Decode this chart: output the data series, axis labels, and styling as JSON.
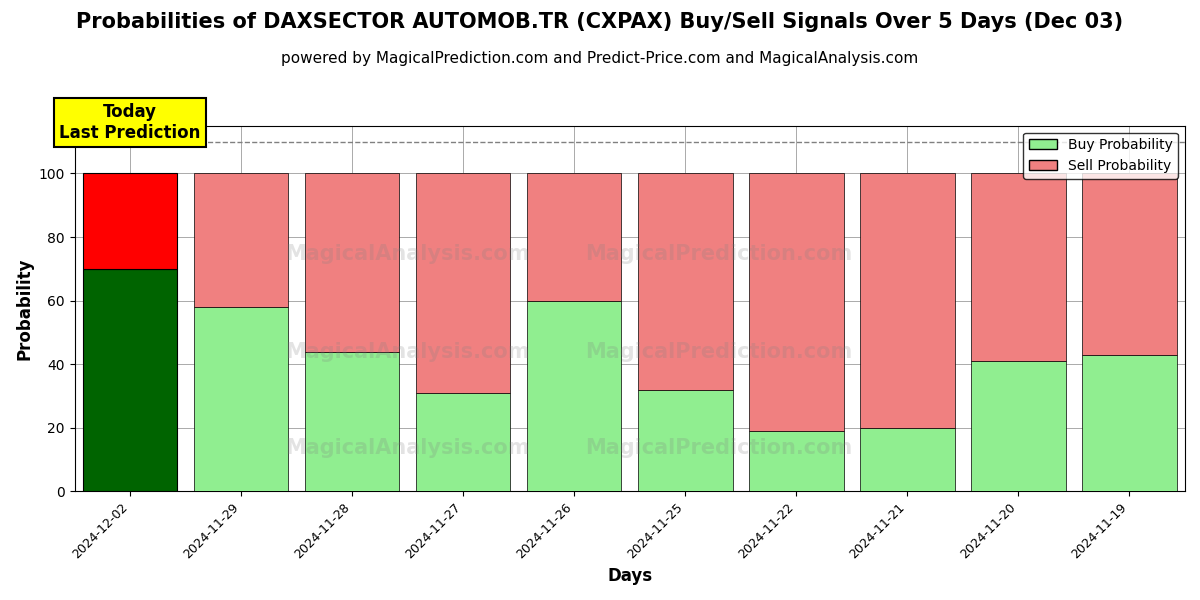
{
  "title": "Probabilities of DAXSECTOR AUTOMOB.TR (CXPAX) Buy/Sell Signals Over 5 Days (Dec 03)",
  "subtitle": "powered by MagicalPrediction.com and Predict-Price.com and MagicalAnalysis.com",
  "xlabel": "Days",
  "ylabel": "Probability",
  "categories": [
    "2024-12-02",
    "2024-11-29",
    "2024-11-28",
    "2024-11-27",
    "2024-11-26",
    "2024-11-25",
    "2024-11-22",
    "2024-11-21",
    "2024-11-20",
    "2024-11-19"
  ],
  "buy_values": [
    70,
    58,
    44,
    31,
    60,
    32,
    19,
    20,
    41,
    43
  ],
  "sell_values": [
    30,
    42,
    56,
    69,
    40,
    68,
    81,
    80,
    59,
    57
  ],
  "today_buy_color": "#006400",
  "today_sell_color": "#FF0000",
  "buy_color": "#90EE90",
  "sell_color": "#F08080",
  "today_annotation": "Today\nLast Prediction",
  "today_annotation_bg": "#FFFF00",
  "ylim": [
    0,
    115
  ],
  "yticks": [
    0,
    20,
    40,
    60,
    80,
    100
  ],
  "dashed_line_y": 110,
  "background_color": "#ffffff",
  "grid_color": "#aaaaaa",
  "title_fontsize": 15,
  "subtitle_fontsize": 11,
  "legend_label_buy": "Buy Probability",
  "legend_label_sell": "Sell Probability",
  "figsize": [
    12,
    6
  ]
}
